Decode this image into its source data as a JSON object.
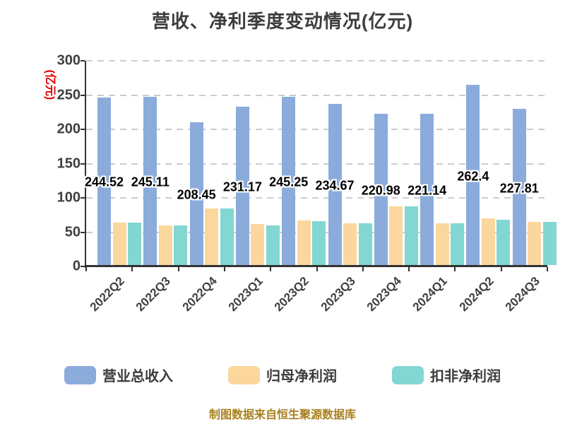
{
  "title": "营收、净利季度变动情况(亿元)",
  "y_axis_unit": "(亿元)",
  "footer": "制图数据来自恒生聚源数据库",
  "colors": {
    "revenue": "#8BABDB",
    "net_profit": "#FBD79D",
    "non_gaap": "#82D7D3",
    "grid": "#CCCCCC",
    "axis": "#333333",
    "unit_red": "#DD0000",
    "footer_text": "#A8801E"
  },
  "legend": {
    "items": [
      {
        "label": "营业总收入",
        "color": "#8BABDB"
      },
      {
        "label": "归母净利润",
        "color": "#FBD79D"
      },
      {
        "label": "扣非净利润",
        "color": "#82D7D3"
      }
    ]
  },
  "chart_data": {
    "type": "bar",
    "title": "营收、净利季度变动情况(亿元)",
    "xlabel": "",
    "ylabel": "(亿元)",
    "categories": [
      "2022Q2",
      "2022Q3",
      "2022Q4",
      "2023Q1",
      "2023Q2",
      "2023Q3",
      "2023Q4",
      "2024Q1",
      "2024Q2",
      "2024Q3"
    ],
    "series": [
      {
        "name": "营业总收入",
        "color": "#8BABDB",
        "values": [
          244.52,
          245.11,
          208.45,
          231.17,
          245.25,
          234.67,
          220.98,
          221.14,
          262.4,
          227.81
        ],
        "labels_visible": true
      },
      {
        "name": "归母净利润",
        "color": "#FBD79D",
        "values": [
          62,
          58,
          82,
          60,
          65,
          61,
          86,
          61,
          68,
          63
        ],
        "labels_visible": false
      },
      {
        "name": "扣非净利润",
        "color": "#82D7D3",
        "values": [
          62,
          58,
          83,
          58,
          64,
          61,
          86,
          61,
          66,
          63
        ],
        "labels_visible": false
      }
    ],
    "ylim": [
      0,
      300
    ],
    "y_ticks": [
      0,
      50,
      100,
      150,
      200,
      250,
      300
    ],
    "grid": "dashed-horizontal",
    "legend_position": "bottom"
  }
}
